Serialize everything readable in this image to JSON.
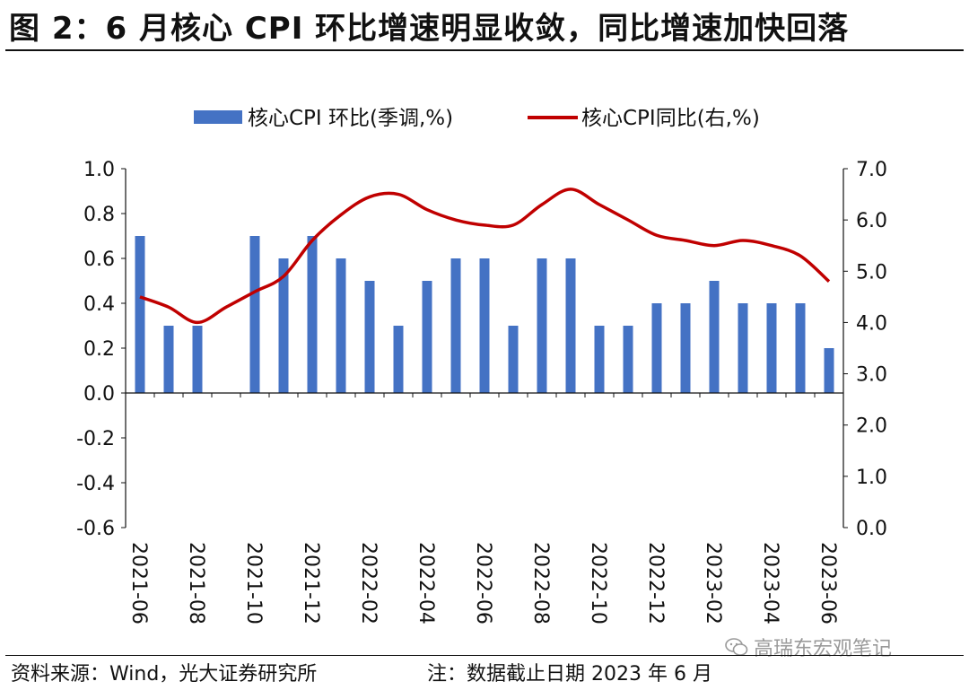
{
  "title": "图 2：6 月核心 CPI 环比增速明显收敛，同比增速加快回落",
  "source": "资料来源：Wind，光大证券研究所",
  "note": "注：数据截止日期 2023 年 6 月",
  "watermark": "高瑞东宏观笔记",
  "colors": {
    "bar": "#4472C4",
    "line": "#C00000"
  },
  "chart_data": {
    "type": "bar+line",
    "legend": [
      "核心CPI 环比(季调,%)",
      "核心CPI同比(右,%)"
    ],
    "legend_position": "top",
    "x": [
      "2021-06",
      "2021-07",
      "2021-08",
      "2021-09",
      "2021-10",
      "2021-11",
      "2021-12",
      "2022-01",
      "2022-02",
      "2022-03",
      "2022-04",
      "2022-05",
      "2022-06",
      "2022-07",
      "2022-08",
      "2022-09",
      "2022-10",
      "2022-11",
      "2022-12",
      "2023-01",
      "2023-02",
      "2023-03",
      "2023-04",
      "2023-05",
      "2023-06"
    ],
    "x_tick_labels": [
      "2021-06",
      "2021-08",
      "2021-10",
      "2021-12",
      "2022-02",
      "2022-04",
      "2022-06",
      "2022-08",
      "2022-10",
      "2022-12",
      "2023-02",
      "2023-04",
      "2023-06"
    ],
    "series": [
      {
        "name": "核心CPI 环比(季调,%)",
        "type": "bar",
        "axis": "left",
        "values": [
          0.7,
          0.3,
          0.3,
          null,
          0.7,
          0.6,
          0.7,
          0.6,
          0.5,
          0.3,
          0.5,
          0.6,
          0.6,
          0.3,
          0.6,
          0.6,
          0.3,
          0.3,
          0.4,
          0.4,
          0.5,
          0.4,
          0.4,
          0.4,
          0.2
        ]
      },
      {
        "name": "核心CPI同比(右,%)",
        "type": "line",
        "axis": "right",
        "values": [
          4.5,
          4.3,
          4.0,
          4.3,
          4.6,
          4.9,
          5.6,
          6.1,
          6.45,
          6.5,
          6.2,
          6.0,
          5.9,
          5.9,
          6.3,
          6.6,
          6.3,
          6.0,
          5.7,
          5.6,
          5.5,
          5.6,
          5.5,
          5.3,
          4.8
        ]
      }
    ],
    "y_left": {
      "ticks": [
        "1.0",
        "0.8",
        "0.6",
        "0.4",
        "0.2",
        "0.0",
        "-0.2",
        "-0.4",
        "-0.6"
      ],
      "range": [
        -0.6,
        1.0
      ]
    },
    "y_right": {
      "ticks": [
        "7.0",
        "6.0",
        "5.0",
        "4.0",
        "3.0",
        "2.0",
        "1.0",
        "0.0"
      ],
      "range": [
        0.0,
        7.0
      ]
    },
    "grid": false
  }
}
